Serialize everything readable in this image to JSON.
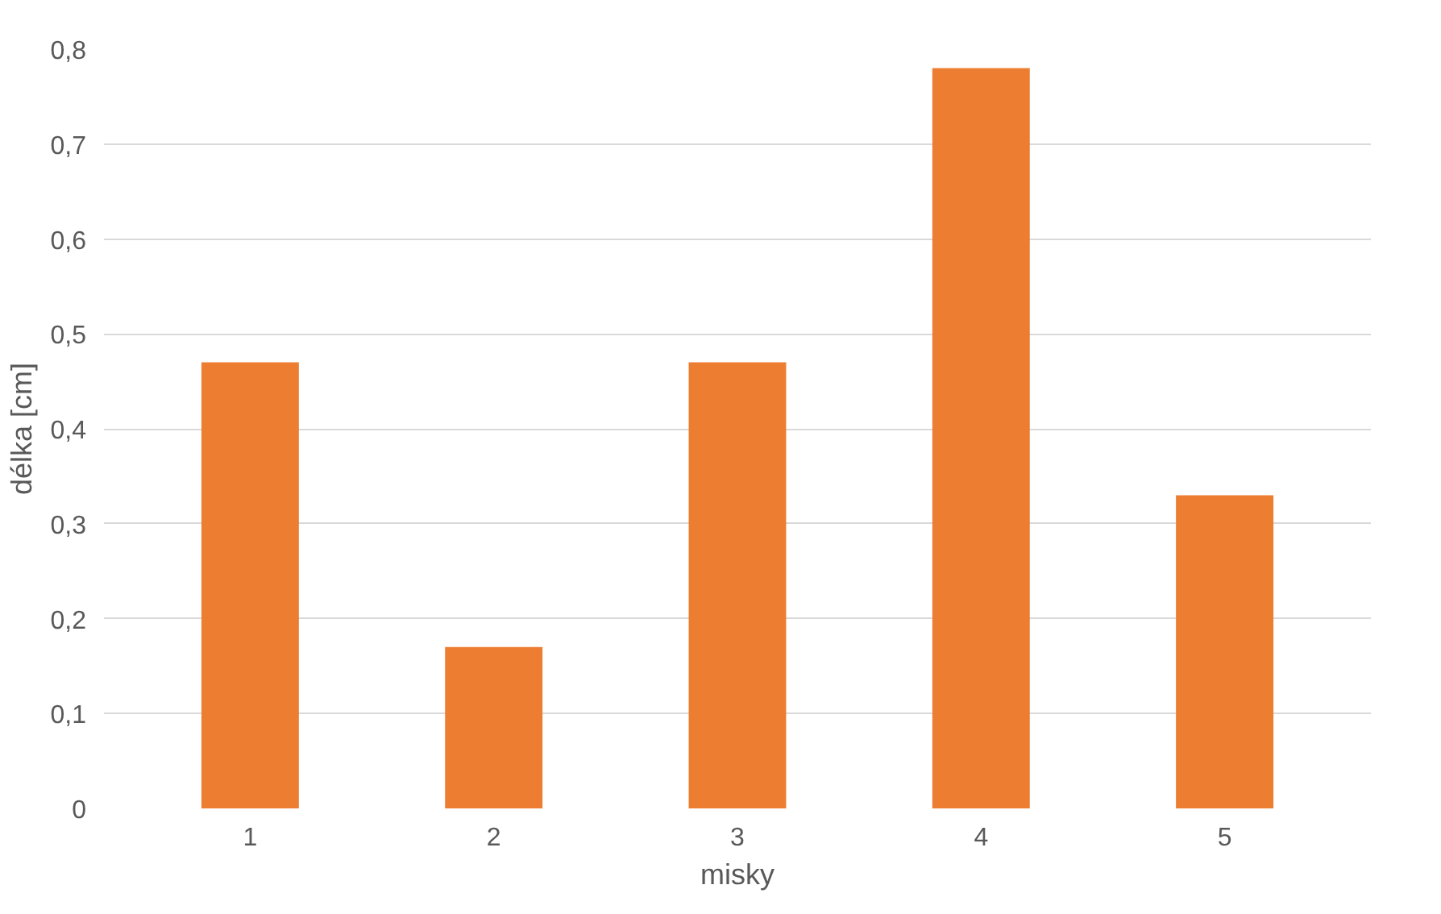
{
  "chart_data": {
    "type": "bar",
    "xlabel": "misky",
    "ylabel": "délka [cm]",
    "categories": [
      "1",
      "2",
      "3",
      "4",
      "5"
    ],
    "values": [
      0.47,
      0.17,
      0.47,
      0.78,
      0.33
    ],
    "color": "#ed7d31",
    "ylim": [
      0,
      0.8
    ],
    "yticks": [
      0,
      {
        "value": 0.1,
        "label": "0,1"
      },
      {
        "value": 0.2,
        "label": "0,2"
      },
      {
        "value": 0.3,
        "label": "0,3"
      },
      {
        "value": 0.4,
        "label": "0,4"
      },
      {
        "value": 0.5,
        "label": "0,5"
      },
      {
        "value": 0.6,
        "label": "0,6"
      },
      {
        "value": 0.7,
        "label": "0,7"
      },
      {
        "value": 0.8,
        "label": "0,8"
      }
    ],
    "grid": "y"
  }
}
